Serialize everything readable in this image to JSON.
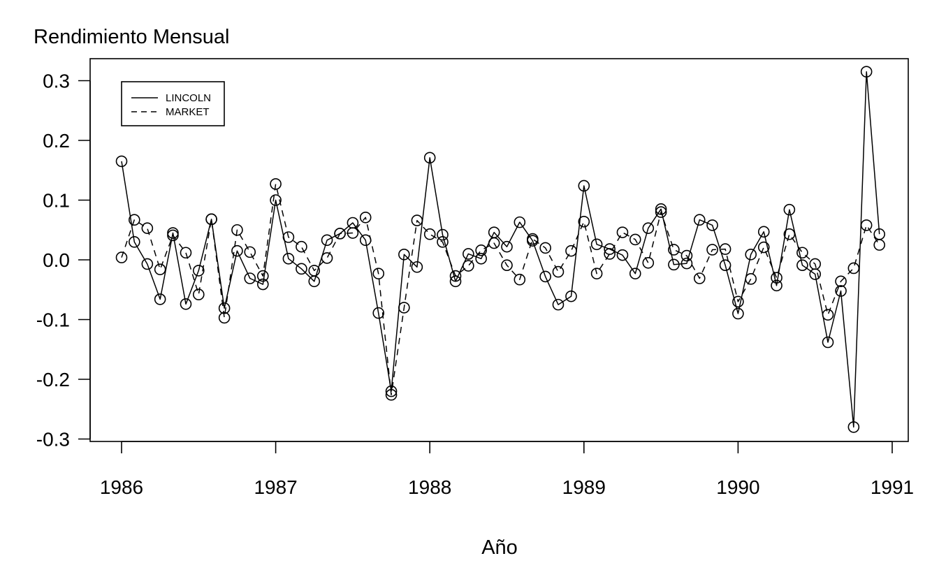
{
  "chart_data": {
    "type": "line",
    "title": "Rendimiento Mensual",
    "xlabel": "Año",
    "ylabel": "",
    "xlim": [
      1985.8,
      1991.1
    ],
    "ylim": [
      -0.3,
      0.34
    ],
    "xticks": [
      1986,
      1987,
      1988,
      1989,
      1990,
      1991
    ],
    "xtick_labels": [
      "1986",
      "1987",
      "1988",
      "1989",
      "1990",
      "1991"
    ],
    "yticks": [
      -0.3,
      -0.2,
      -0.1,
      0.0,
      0.1,
      0.2,
      0.3
    ],
    "ytick_labels": [
      "-0.3",
      "-0.2",
      "-0.1",
      "0.0",
      "0.1",
      "0.2",
      "0.3"
    ],
    "legend": {
      "position": "top-left",
      "entries": [
        "LINCOLN",
        "MARKET"
      ]
    },
    "grid": false,
    "x": [
      1986,
      1986.083,
      1986.167,
      1986.25,
      1986.333,
      1986.417,
      1986.5,
      1986.583,
      1986.667,
      1986.75,
      1986.833,
      1986.917,
      1987,
      1987.083,
      1987.167,
      1987.25,
      1987.333,
      1987.417,
      1987.5,
      1987.583,
      1987.667,
      1987.75,
      1987.833,
      1987.917,
      1988,
      1988.083,
      1988.167,
      1988.25,
      1988.333,
      1988.417,
      1988.5,
      1988.583,
      1988.667,
      1988.75,
      1988.833,
      1988.917,
      1989,
      1989.083,
      1989.167,
      1989.25,
      1989.333,
      1989.417,
      1989.5,
      1989.583,
      1989.667,
      1989.75,
      1989.833,
      1989.917,
      1990,
      1990.083,
      1990.167,
      1990.25,
      1990.333,
      1990.417,
      1990.5,
      1990.583,
      1990.667,
      1990.75,
      1990.833,
      1990.917
    ],
    "series": [
      {
        "name": "LINCOLN",
        "line_style": "solid",
        "values": [
          0.165,
          0.03,
          -0.007,
          -0.066,
          0.045,
          -0.074,
          -0.018,
          0.068,
          -0.081,
          0.015,
          -0.031,
          -0.041,
          0.1,
          0.002,
          -0.015,
          -0.036,
          0.033,
          0.044,
          0.062,
          0.033,
          -0.089,
          -0.22,
          0.009,
          -0.012,
          0.171,
          0.042,
          -0.036,
          0.01,
          0.002,
          0.046,
          0.022,
          0.063,
          0.032,
          -0.028,
          -0.075,
          -0.061,
          0.124,
          0.026,
          0.018,
          0.008,
          -0.023,
          0.053,
          0.085,
          -0.008,
          -0.006,
          0.067,
          0.058,
          -0.009,
          -0.09,
          0.009,
          0.047,
          -0.043,
          0.084,
          -0.009,
          -0.024,
          -0.138,
          -0.052,
          -0.28,
          0.315,
          0.043
        ]
      },
      {
        "name": "MARKET",
        "line_style": "dashed",
        "values": [
          0.004,
          0.067,
          0.053,
          -0.016,
          0.041,
          0.012,
          -0.058,
          0.068,
          -0.097,
          0.05,
          0.013,
          -0.027,
          0.127,
          0.038,
          0.022,
          -0.018,
          0.003,
          0.044,
          0.045,
          0.071,
          -0.023,
          -0.226,
          -0.08,
          0.066,
          0.043,
          0.03,
          -0.027,
          -0.01,
          0.016,
          0.028,
          -0.009,
          -0.033,
          0.035,
          0.02,
          -0.02,
          0.015,
          0.064,
          -0.023,
          0.01,
          0.046,
          0.034,
          -0.005,
          0.08,
          0.017,
          0.007,
          -0.031,
          0.017,
          0.018,
          -0.07,
          -0.032,
          0.021,
          -0.03,
          0.043,
          0.012,
          -0.007,
          -0.092,
          -0.036,
          -0.014,
          0.058,
          0.025
        ]
      }
    ]
  }
}
